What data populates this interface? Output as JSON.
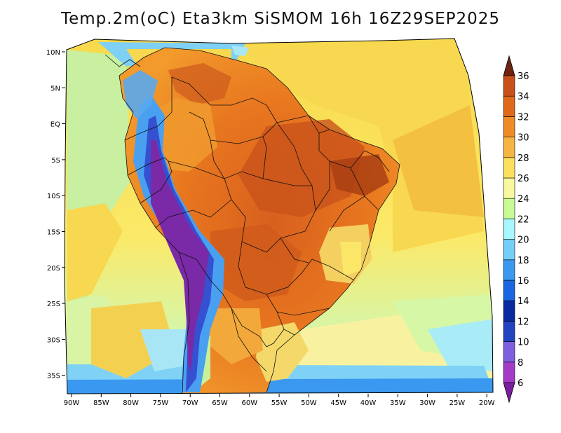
{
  "title": "Temp.2m(oC) Eta3km SiSMOM 16h 16Z29SEP2025",
  "map": {
    "variable": "2 m air temperature",
    "units": "oC",
    "region": "South America",
    "lon_range": [
      -91,
      -20
    ],
    "lat_range": [
      -38,
      11
    ],
    "lon_ticks": [
      "90W",
      "85W",
      "80W",
      "75W",
      "70W",
      "65W",
      "60W",
      "55W",
      "50W",
      "45W",
      "40W",
      "35W",
      "30W",
      "25W",
      "20W"
    ],
    "lat_ticks": [
      "10N",
      "5N",
      "EQ",
      "5S",
      "10S",
      "15S",
      "20S",
      "25S",
      "30S",
      "35S"
    ]
  },
  "colorbar": {
    "labels": [
      "6",
      "8",
      "10",
      "12",
      "14",
      "16",
      "18",
      "20",
      "22",
      "24",
      "26",
      "28",
      "30",
      "32",
      "34",
      "36"
    ],
    "colors": [
      "#7a1fa0",
      "#a43bc8",
      "#7f5fe0",
      "#2244c0",
      "#0a2aa0",
      "#1a66e0",
      "#3a98f0",
      "#74cff8",
      "#a8f6ff",
      "#c8fa96",
      "#f8f8a0",
      "#fbe060",
      "#f6b442",
      "#f08c28",
      "#e06a1a",
      "#c8501a",
      "#a03a10",
      "#6e2410"
    ]
  }
}
